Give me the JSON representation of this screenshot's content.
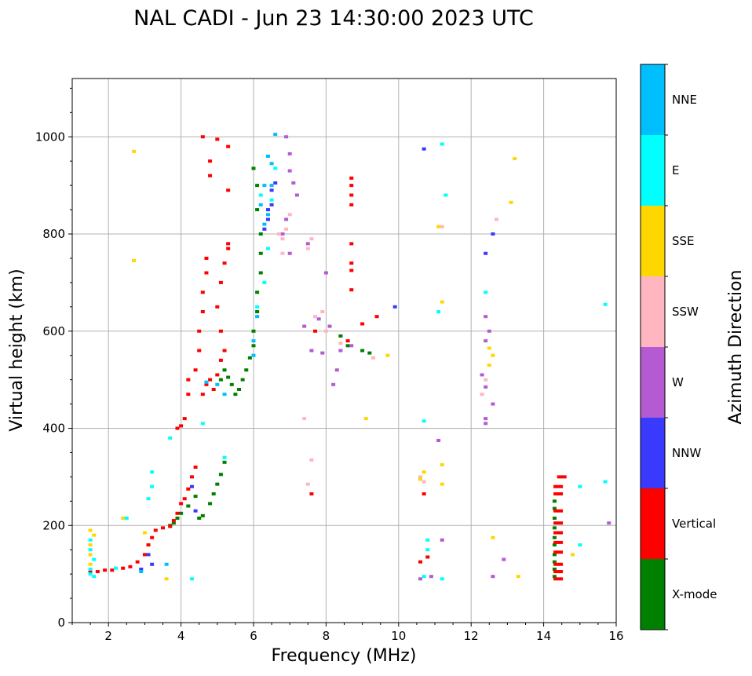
{
  "chart_data": {
    "type": "scatter",
    "title": "NAL CADI - Jun 23 14:30:00 2023 UTC",
    "xlabel": "Frequency (MHz)",
    "ylabel": "Virtual height (km)",
    "xlim": [
      1,
      16
    ],
    "ylim": [
      0,
      1120
    ],
    "xticks": [
      2,
      4,
      6,
      8,
      10,
      12,
      14,
      16
    ],
    "yticks": [
      0,
      200,
      400,
      600,
      800,
      1000
    ],
    "grid": true,
    "colorbar": {
      "label": "Azimuth Direction",
      "categories": [
        {
          "name": "X-mode",
          "color": "#008000"
        },
        {
          "name": "Vertical",
          "color": "#ff0000"
        },
        {
          "name": "NNW",
          "color": "#3a3aff"
        },
        {
          "name": "W",
          "color": "#b45ad2"
        },
        {
          "name": "SSW",
          "color": "#ffb6c1"
        },
        {
          "name": "SSE",
          "color": "#ffd700"
        },
        {
          "name": "E",
          "color": "#00ffff"
        },
        {
          "name": "NNE",
          "color": "#00bfff"
        }
      ]
    },
    "series": [
      {
        "name": "X-mode",
        "points": [
          [
            3.7,
            200
          ],
          [
            3.8,
            205
          ],
          [
            3.9,
            215
          ],
          [
            4.0,
            225
          ],
          [
            4.2,
            240
          ],
          [
            4.4,
            260
          ],
          [
            4.5,
            215
          ],
          [
            4.6,
            220
          ],
          [
            4.8,
            245
          ],
          [
            4.9,
            265
          ],
          [
            5.0,
            285
          ],
          [
            5.1,
            305
          ],
          [
            5.2,
            330
          ],
          [
            5.1,
            500
          ],
          [
            5.2,
            520
          ],
          [
            5.3,
            505
          ],
          [
            5.4,
            490
          ],
          [
            5.5,
            470
          ],
          [
            5.6,
            480
          ],
          [
            5.7,
            500
          ],
          [
            5.8,
            520
          ],
          [
            5.9,
            545
          ],
          [
            6.0,
            570
          ],
          [
            6.0,
            600
          ],
          [
            6.1,
            640
          ],
          [
            6.1,
            680
          ],
          [
            6.2,
            720
          ],
          [
            6.2,
            760
          ],
          [
            6.2,
            800
          ],
          [
            6.1,
            850
          ],
          [
            6.1,
            900
          ],
          [
            6.0,
            935
          ],
          [
            8.4,
            590
          ],
          [
            8.6,
            570
          ],
          [
            9.0,
            560
          ],
          [
            9.2,
            555
          ],
          [
            14.3,
            95
          ],
          [
            14.3,
            110
          ],
          [
            14.3,
            125
          ],
          [
            14.3,
            140
          ],
          [
            14.3,
            160
          ],
          [
            14.3,
            175
          ],
          [
            14.3,
            195
          ],
          [
            14.3,
            215
          ],
          [
            14.3,
            235
          ],
          [
            14.3,
            250
          ]
        ]
      },
      {
        "name": "Vertical",
        "points": [
          [
            1.5,
            105
          ],
          [
            1.7,
            105
          ],
          [
            1.9,
            108
          ],
          [
            2.1,
            108
          ],
          [
            2.4,
            112
          ],
          [
            2.6,
            115
          ],
          [
            2.8,
            125
          ],
          [
            3.0,
            140
          ],
          [
            3.1,
            160
          ],
          [
            3.2,
            175
          ],
          [
            3.3,
            190
          ],
          [
            3.5,
            195
          ],
          [
            3.7,
            198
          ],
          [
            3.8,
            210
          ],
          [
            3.9,
            225
          ],
          [
            4.0,
            245
          ],
          [
            4.1,
            255
          ],
          [
            4.2,
            275
          ],
          [
            4.3,
            300
          ],
          [
            4.4,
            320
          ],
          [
            3.9,
            400
          ],
          [
            4.0,
            405
          ],
          [
            4.1,
            420
          ],
          [
            4.2,
            470
          ],
          [
            4.2,
            500
          ],
          [
            4.4,
            520
          ],
          [
            4.5,
            560
          ],
          [
            4.5,
            600
          ],
          [
            4.6,
            640
          ],
          [
            4.6,
            680
          ],
          [
            4.7,
            720
          ],
          [
            4.7,
            750
          ],
          [
            4.6,
            1000
          ],
          [
            4.8,
            950
          ],
          [
            4.8,
            920
          ],
          [
            5.0,
            995
          ],
          [
            5.3,
            980
          ],
          [
            4.6,
            470
          ],
          [
            4.7,
            490
          ],
          [
            4.8,
            500
          ],
          [
            4.9,
            480
          ],
          [
            5.0,
            510
          ],
          [
            5.1,
            540
          ],
          [
            5.2,
            560
          ],
          [
            5.1,
            600
          ],
          [
            5.0,
            650
          ],
          [
            5.1,
            700
          ],
          [
            5.2,
            740
          ],
          [
            5.3,
            770
          ],
          [
            5.3,
            780
          ],
          [
            5.3,
            890
          ],
          [
            8.7,
            860
          ],
          [
            8.7,
            880
          ],
          [
            8.7,
            900
          ],
          [
            8.7,
            915
          ],
          [
            8.7,
            780
          ],
          [
            8.7,
            740
          ],
          [
            8.7,
            725
          ],
          [
            8.7,
            685
          ],
          [
            9.0,
            615
          ],
          [
            9.4,
            630
          ],
          [
            8.6,
            580
          ],
          [
            7.7,
            600
          ],
          [
            7.6,
            265
          ],
          [
            10.8,
            135
          ],
          [
            10.6,
            125
          ],
          [
            10.7,
            265
          ],
          [
            14.4,
            90
          ],
          [
            14.4,
            105
          ],
          [
            14.4,
            120
          ],
          [
            14.4,
            145
          ],
          [
            14.4,
            165
          ],
          [
            14.4,
            185
          ],
          [
            14.4,
            205
          ],
          [
            14.4,
            230
          ],
          [
            14.4,
            265
          ],
          [
            14.4,
            280
          ],
          [
            14.5,
            300
          ]
        ]
      },
      {
        "name": "NNW",
        "points": [
          [
            6.4,
            850
          ],
          [
            6.5,
            890
          ],
          [
            6.6,
            905
          ],
          [
            6.5,
            860
          ],
          [
            6.3,
            810
          ],
          [
            6.4,
            830
          ],
          [
            9.9,
            650
          ],
          [
            10.7,
            975
          ],
          [
            12.4,
            760
          ],
          [
            12.6,
            800
          ],
          [
            2.9,
            110
          ],
          [
            3.1,
            140
          ],
          [
            3.2,
            120
          ],
          [
            4.4,
            230
          ],
          [
            4.3,
            280
          ]
        ]
      },
      {
        "name": "W",
        "points": [
          [
            6.9,
            1000
          ],
          [
            7.0,
            965
          ],
          [
            7.0,
            930
          ],
          [
            7.1,
            905
          ],
          [
            7.2,
            880
          ],
          [
            6.9,
            830
          ],
          [
            6.8,
            800
          ],
          [
            7.0,
            760
          ],
          [
            7.5,
            780
          ],
          [
            7.4,
            610
          ],
          [
            7.8,
            625
          ],
          [
            8.1,
            610
          ],
          [
            7.6,
            560
          ],
          [
            7.9,
            555
          ],
          [
            8.4,
            560
          ],
          [
            8.7,
            570
          ],
          [
            8.3,
            520
          ],
          [
            8.2,
            490
          ],
          [
            8.0,
            720
          ],
          [
            12.4,
            630
          ],
          [
            12.5,
            600
          ],
          [
            12.4,
            580
          ],
          [
            12.3,
            510
          ],
          [
            12.4,
            485
          ],
          [
            12.6,
            450
          ],
          [
            12.4,
            420
          ],
          [
            12.4,
            410
          ],
          [
            12.6,
            95
          ],
          [
            12.9,
            130
          ],
          [
            11.1,
            375
          ],
          [
            11.2,
            170
          ],
          [
            10.9,
            95
          ],
          [
            10.6,
            90
          ],
          [
            15.8,
            205
          ]
        ]
      },
      {
        "name": "SSW",
        "points": [
          [
            6.7,
            800
          ],
          [
            6.8,
            790
          ],
          [
            6.9,
            810
          ],
          [
            7.0,
            840
          ],
          [
            6.8,
            760
          ],
          [
            7.6,
            790
          ],
          [
            7.5,
            770
          ],
          [
            7.7,
            630
          ],
          [
            7.9,
            640
          ],
          [
            8.0,
            600
          ],
          [
            8.4,
            575
          ],
          [
            9.3,
            545
          ],
          [
            7.4,
            420
          ],
          [
            7.6,
            335
          ],
          [
            7.5,
            285
          ],
          [
            10.7,
            290
          ],
          [
            10.6,
            300
          ],
          [
            12.4,
            500
          ],
          [
            12.3,
            470
          ],
          [
            11.2,
            815
          ],
          [
            12.7,
            830
          ]
        ]
      },
      {
        "name": "SSE",
        "points": [
          [
            1.5,
            120
          ],
          [
            1.5,
            140
          ],
          [
            1.5,
            160
          ],
          [
            1.6,
            180
          ],
          [
            1.5,
            190
          ],
          [
            2.4,
            215
          ],
          [
            3.6,
            90
          ],
          [
            2.7,
            970
          ],
          [
            2.7,
            745
          ],
          [
            3.0,
            185
          ],
          [
            9.1,
            420
          ],
          [
            9.7,
            550
          ],
          [
            10.7,
            310
          ],
          [
            10.6,
            295
          ],
          [
            11.2,
            325
          ],
          [
            11.2,
            285
          ],
          [
            11.2,
            660
          ],
          [
            11.1,
            815
          ],
          [
            12.6,
            550
          ],
          [
            12.5,
            530
          ],
          [
            12.5,
            565
          ],
          [
            12.6,
            175
          ],
          [
            13.3,
            95
          ],
          [
            13.1,
            865
          ],
          [
            13.2,
            955
          ],
          [
            14.8,
            140
          ]
        ]
      },
      {
        "name": "E",
        "points": [
          [
            1.5,
            100
          ],
          [
            1.5,
            110
          ],
          [
            1.6,
            130
          ],
          [
            1.5,
            150
          ],
          [
            1.5,
            170
          ],
          [
            1.6,
            95
          ],
          [
            2.2,
            112
          ],
          [
            2.5,
            215
          ],
          [
            3.2,
            280
          ],
          [
            3.2,
            310
          ],
          [
            3.1,
            255
          ],
          [
            3.7,
            380
          ],
          [
            4.3,
            90
          ],
          [
            4.6,
            410
          ],
          [
            5.2,
            340
          ],
          [
            6.1,
            650
          ],
          [
            6.3,
            700
          ],
          [
            6.4,
            770
          ],
          [
            6.5,
            870
          ],
          [
            6.6,
            935
          ],
          [
            6.2,
            880
          ],
          [
            10.7,
            415
          ],
          [
            10.8,
            150
          ],
          [
            10.8,
            170
          ],
          [
            10.7,
            95
          ],
          [
            11.1,
            640
          ],
          [
            11.2,
            985
          ],
          [
            11.3,
            880
          ],
          [
            11.2,
            90
          ],
          [
            12.4,
            680
          ],
          [
            15.0,
            280
          ],
          [
            15.7,
            290
          ],
          [
            15.0,
            160
          ],
          [
            15.7,
            655
          ]
        ]
      },
      {
        "name": "NNE",
        "points": [
          [
            6.6,
            1005
          ],
          [
            6.4,
            960
          ],
          [
            6.5,
            945
          ],
          [
            6.3,
            900
          ],
          [
            6.5,
            900
          ],
          [
            6.2,
            860
          ],
          [
            6.4,
            840
          ],
          [
            6.3,
            820
          ],
          [
            6.1,
            630
          ],
          [
            6.0,
            580
          ],
          [
            6.0,
            550
          ],
          [
            5.0,
            490
          ],
          [
            4.7,
            495
          ],
          [
            5.2,
            470
          ],
          [
            3.6,
            120
          ],
          [
            2.9,
            105
          ]
        ]
      }
    ]
  }
}
